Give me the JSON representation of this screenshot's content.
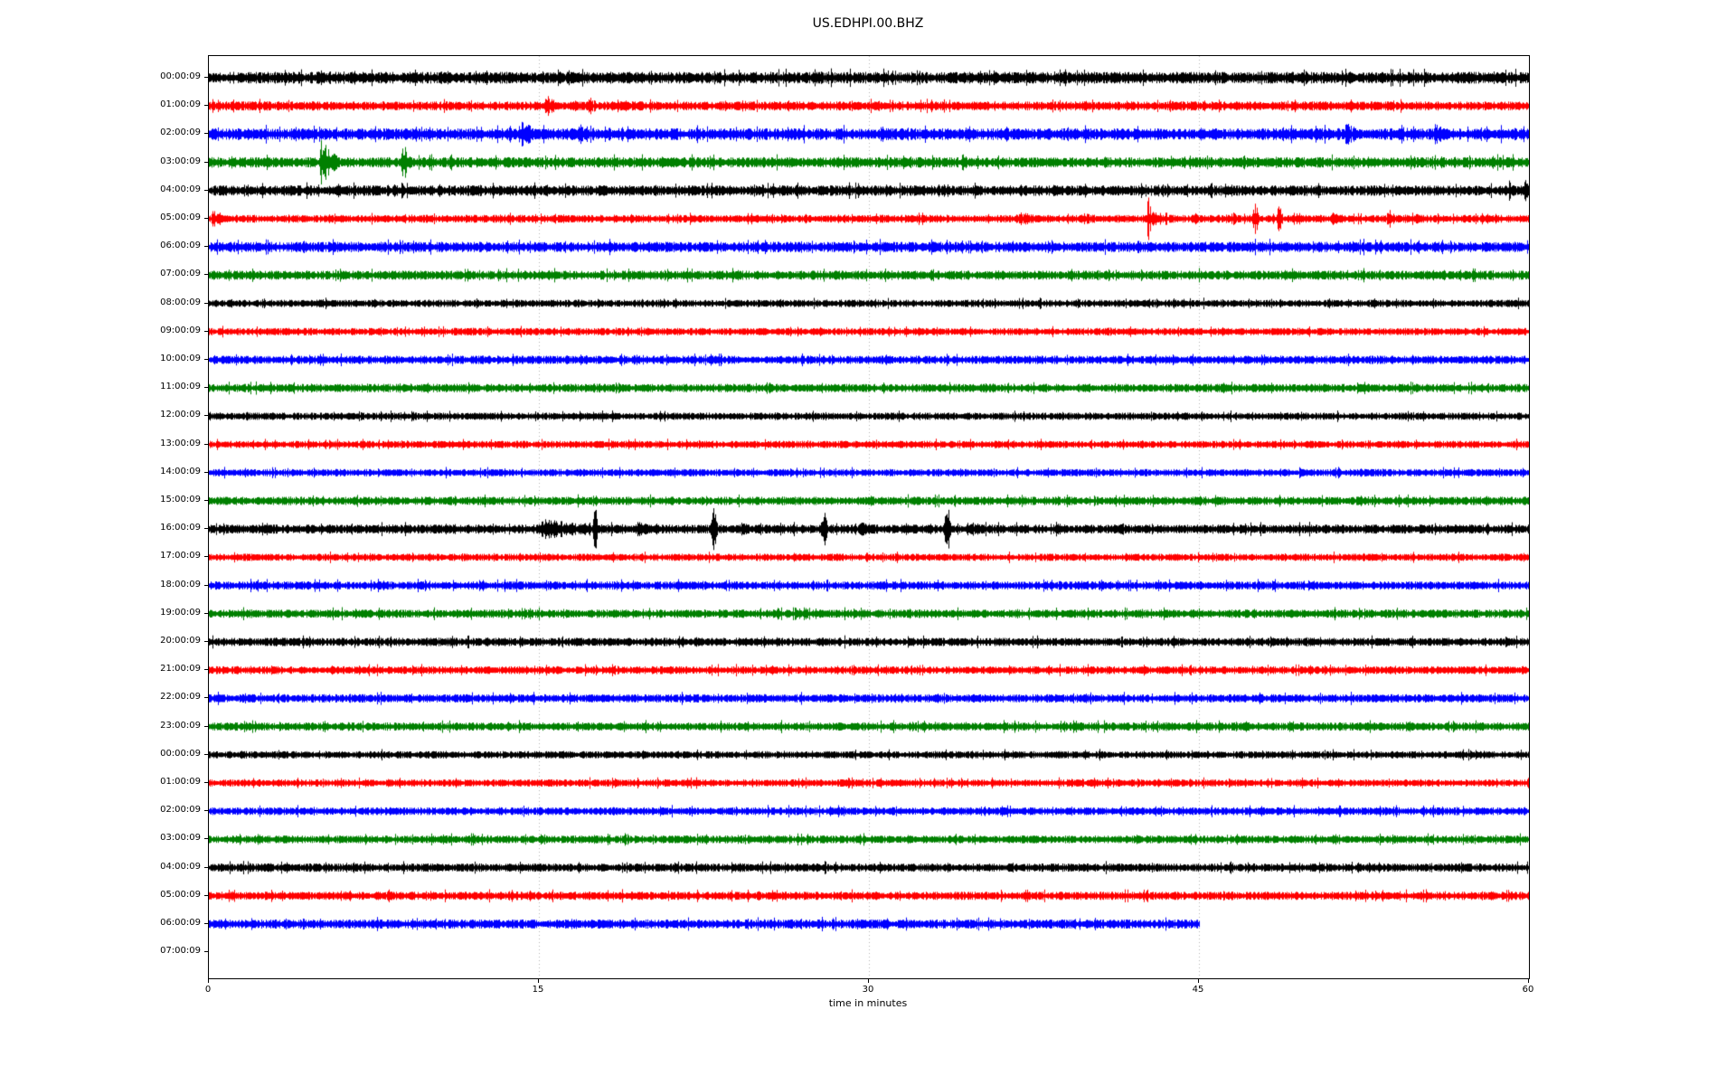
{
  "chart_data": {
    "type": "line",
    "subtype": "helicorder-dayplot",
    "title": "US.EDHPI.00.BHZ",
    "xlabel": "time in minutes",
    "xlim": [
      0,
      60
    ],
    "xticks": [
      0,
      15,
      30,
      45,
      60
    ],
    "grid": {
      "vertical_at_minutes": [
        15,
        30,
        45
      ],
      "style": "dotted",
      "color": "#b3b3b3"
    },
    "legend": "none",
    "colors_cycle": [
      "#000000",
      "#ff0000",
      "#0000ff",
      "#008000"
    ],
    "events_format": "[start_minute, end_minute, peak_amplitude_px]",
    "rows": [
      {
        "label": "00:00:09",
        "color": "#000000",
        "base_amp": 4.5,
        "end_min": 60,
        "events": []
      },
      {
        "label": "01:00:09",
        "color": "#ff0000",
        "base_amp": 3.5,
        "end_min": 60,
        "events": [
          [
            15.2,
            16.2,
            14
          ],
          [
            16.5,
            16.8,
            6
          ],
          [
            17.2,
            17.9,
            12
          ]
        ]
      },
      {
        "label": "02:00:09",
        "color": "#0000ff",
        "base_amp": 4.5,
        "end_min": 60,
        "events": [
          [
            13.4,
            13.9,
            10
          ],
          [
            14.1,
            15.2,
            18
          ],
          [
            15.5,
            16.2,
            9
          ],
          [
            16.7,
            18.4,
            16
          ],
          [
            18.8,
            19.4,
            9
          ],
          [
            31.6,
            32.5,
            10
          ],
          [
            34.3,
            35.1,
            9
          ],
          [
            36.1,
            37.3,
            9
          ],
          [
            37.9,
            38.5,
            8
          ],
          [
            38.9,
            39.4,
            7
          ],
          [
            51.5,
            53.1,
            13
          ],
          [
            53.9,
            54.4,
            7
          ],
          [
            55.6,
            56.8,
            14
          ]
        ]
      },
      {
        "label": "03:00:09",
        "color": "#008000",
        "base_amp": 4.0,
        "end_min": 60,
        "events": [
          [
            5.0,
            5.8,
            34
          ],
          [
            8.6,
            9.1,
            28
          ],
          [
            17.7,
            18.2,
            6
          ],
          [
            20.3,
            22.7,
            7
          ],
          [
            25.5,
            26.1,
            5
          ]
        ]
      },
      {
        "label": "04:00:09",
        "color": "#000000",
        "base_amp": 4.0,
        "end_min": 60,
        "events": [
          [
            59.0,
            59.7,
            12
          ],
          [
            59.7,
            60.0,
            24
          ]
        ]
      },
      {
        "label": "05:00:09",
        "color": "#ff0000",
        "base_amp": 3.0,
        "end_min": 60,
        "events": [
          [
            0.0,
            1.6,
            11
          ],
          [
            36.6,
            38.9,
            8
          ],
          [
            39.4,
            41.6,
            7
          ],
          [
            42.6,
            43.2,
            26
          ],
          [
            44.7,
            45.4,
            8
          ],
          [
            46.4,
            47.2,
            9
          ],
          [
            47.3,
            47.8,
            20
          ],
          [
            48.4,
            48.9,
            16
          ],
          [
            49.2,
            50.2,
            8
          ],
          [
            50.9,
            52.6,
            8
          ],
          [
            53.5,
            54.2,
            14
          ],
          [
            54.8,
            55.4,
            10
          ],
          [
            57.9,
            58.3,
            6
          ]
        ]
      },
      {
        "label": "06:00:09",
        "color": "#0000ff",
        "base_amp": 4.0,
        "end_min": 60,
        "events": []
      },
      {
        "label": "07:00:09",
        "color": "#008000",
        "base_amp": 3.5,
        "end_min": 60,
        "events": []
      },
      {
        "label": "08:00:09",
        "color": "#000000",
        "base_amp": 2.8,
        "end_min": 60,
        "events": [
          [
            17.4,
            17.9,
            9
          ]
        ]
      },
      {
        "label": "09:00:09",
        "color": "#ff0000",
        "base_amp": 2.8,
        "end_min": 60,
        "events": []
      },
      {
        "label": "10:00:09",
        "color": "#0000ff",
        "base_amp": 3.2,
        "end_min": 60,
        "events": []
      },
      {
        "label": "11:00:09",
        "color": "#008000",
        "base_amp": 3.2,
        "end_min": 60,
        "events": []
      },
      {
        "label": "12:00:09",
        "color": "#000000",
        "base_amp": 2.8,
        "end_min": 60,
        "events": []
      },
      {
        "label": "13:00:09",
        "color": "#ff0000",
        "base_amp": 2.8,
        "end_min": 60,
        "events": []
      },
      {
        "label": "14:00:09",
        "color": "#0000ff",
        "base_amp": 2.8,
        "end_min": 60,
        "events": []
      },
      {
        "label": "15:00:09",
        "color": "#008000",
        "base_amp": 3.2,
        "end_min": 60,
        "events": []
      },
      {
        "label": "16:00:09",
        "color": "#000000",
        "base_amp": 3.5,
        "end_min": 60,
        "events": [
          [
            12.4,
            14.4,
            6
          ],
          [
            14.4,
            21.6,
            11
          ],
          [
            17.35,
            17.75,
            30
          ],
          [
            19.4,
            20.3,
            14
          ],
          [
            22.7,
            23.2,
            26
          ],
          [
            23.9,
            26.6,
            9
          ],
          [
            27.7,
            28.2,
            24
          ],
          [
            29.4,
            31.1,
            9
          ],
          [
            31.5,
            33.0,
            7
          ],
          [
            33.3,
            33.8,
            28
          ],
          [
            34.4,
            36.6,
            8
          ],
          [
            38.4,
            39.1,
            10
          ],
          [
            41.2,
            41.8,
            12
          ],
          [
            43.9,
            44.6,
            6
          ]
        ]
      },
      {
        "label": "17:00:09",
        "color": "#ff0000",
        "base_amp": 2.8,
        "end_min": 60,
        "events": []
      },
      {
        "label": "18:00:09",
        "color": "#0000ff",
        "base_amp": 3.2,
        "end_min": 60,
        "events": []
      },
      {
        "label": "19:00:09",
        "color": "#008000",
        "base_amp": 3.2,
        "end_min": 60,
        "events": []
      },
      {
        "label": "20:00:09",
        "color": "#000000",
        "base_amp": 3.2,
        "end_min": 60,
        "events": []
      },
      {
        "label": "21:00:09",
        "color": "#ff0000",
        "base_amp": 3.0,
        "end_min": 60,
        "events": []
      },
      {
        "label": "22:00:09",
        "color": "#0000ff",
        "base_amp": 3.2,
        "end_min": 60,
        "events": []
      },
      {
        "label": "23:00:09",
        "color": "#008000",
        "base_amp": 3.2,
        "end_min": 60,
        "events": []
      },
      {
        "label": "00:00:09",
        "color": "#000000",
        "base_amp": 2.8,
        "end_min": 60,
        "events": [
          [
            21.5,
            21.9,
            9
          ]
        ]
      },
      {
        "label": "01:00:09",
        "color": "#ff0000",
        "base_amp": 2.8,
        "end_min": 60,
        "events": []
      },
      {
        "label": "02:00:09",
        "color": "#0000ff",
        "base_amp": 3.0,
        "end_min": 60,
        "events": []
      },
      {
        "label": "03:00:09",
        "color": "#008000",
        "base_amp": 3.0,
        "end_min": 60,
        "events": [
          [
            20.5,
            20.8,
            5
          ]
        ]
      },
      {
        "label": "04:00:09",
        "color": "#000000",
        "base_amp": 3.2,
        "end_min": 60,
        "events": []
      },
      {
        "label": "05:00:09",
        "color": "#ff0000",
        "base_amp": 3.2,
        "end_min": 60,
        "events": []
      },
      {
        "label": "06:00:09",
        "color": "#0000ff",
        "base_amp": 3.5,
        "end_min": 45,
        "events": []
      },
      {
        "label": "07:00:09",
        "color": "#008000",
        "base_amp": 0,
        "end_min": 0,
        "events": []
      }
    ]
  }
}
